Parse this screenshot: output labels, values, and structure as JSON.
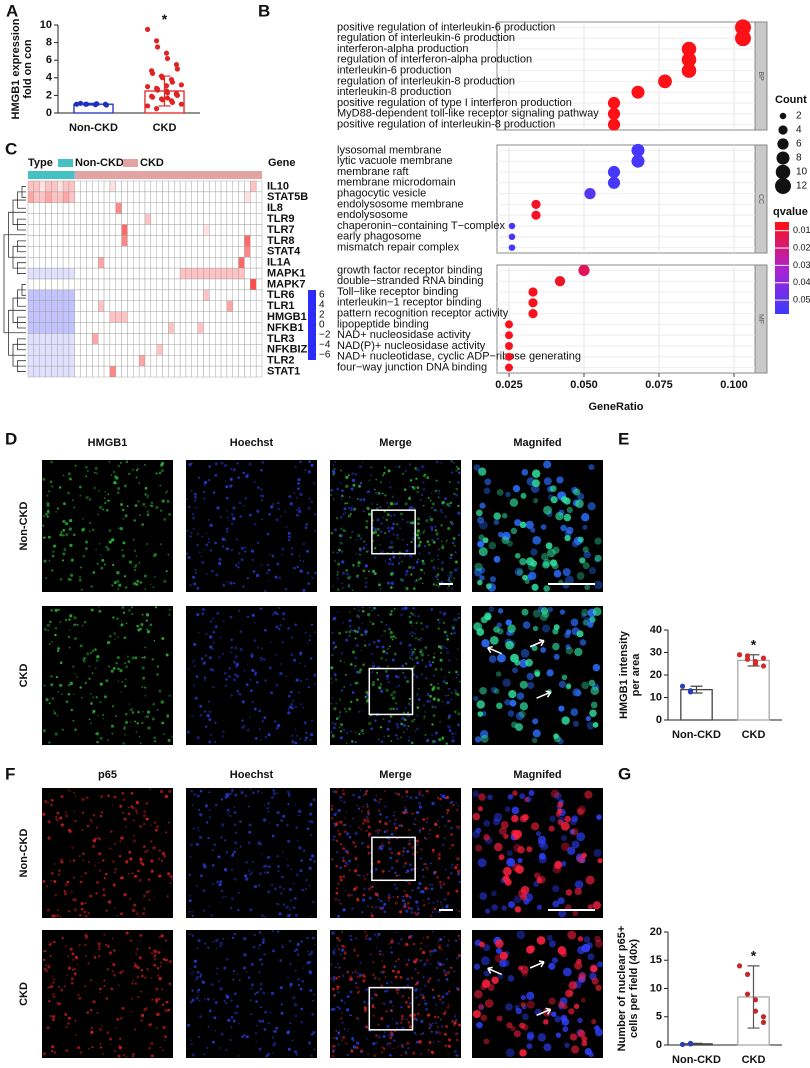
{
  "chart_data": [
    {
      "panel": "A",
      "type": "bar",
      "categories": [
        "Non-CKD",
        "CKD"
      ],
      "y_label": [
        "HMGB1 expression",
        "fold on con"
      ],
      "values": [
        1,
        2.5
      ],
      "errors": [
        0.1,
        1.7
      ],
      "points": [
        [
          1,
          1,
          1,
          0.95,
          1.05,
          1,
          0.9,
          1.1
        ],
        [
          9.5,
          8.2,
          7.5,
          6.8,
          6.2,
          5.5,
          5,
          4.8,
          4.5,
          4.2,
          4,
          3.8,
          3.5,
          3.2,
          3,
          2.8,
          2.6,
          2.5,
          2.3,
          2.2,
          2,
          1.9,
          1.8,
          1.6,
          1.5,
          1.4,
          1.2,
          1,
          0.8,
          0.5,
          2.7,
          3.1,
          1.7,
          2.1
        ]
      ],
      "bar_colors": [
        "#1f2fbf",
        "#e02424"
      ],
      "point_colors": [
        "#1f2fbf",
        "#e02424"
      ],
      "annotations": [
        null,
        "*"
      ],
      "ylim": [
        0,
        10
      ],
      "yticks": [
        0,
        2,
        4,
        6,
        8,
        10
      ]
    },
    {
      "panel": "B",
      "type": "dot",
      "x_label": "GeneRatio",
      "xlim": [
        0.021,
        0.107
      ],
      "xticks": [
        {
          "value": 0.025,
          "label": "0.025"
        },
        {
          "value": 0.05,
          "label": "0.050"
        },
        0.075,
        {
          "value": 0.1,
          "label": "0.100"
        }
      ],
      "facets": [
        {
          "name": "BP",
          "terms": [
            "positive regulation of interleukin-6 production",
            "regulation of interleukin-6 production",
            "interferon-alpha production",
            "regulation of interferon-alpha production",
            "interleukin-6 production",
            "regulation of interleukin-8 production",
            "interleukin-8 production",
            "positive regulation of type I interferon production",
            "MyD88-dependent toll-like receptor signaling pathway",
            "positive regulation of interleukin-8 production"
          ],
          "gene_ratio": [
            0.103,
            0.103,
            0.085,
            0.085,
            0.085,
            0.077,
            0.068,
            0.06,
            0.06,
            0.06
          ],
          "count": [
            12,
            12,
            10,
            10,
            10,
            9,
            8,
            7,
            7,
            7
          ],
          "qvalue": [
            0.006,
            0.006,
            0.006,
            0.006,
            0.006,
            0.006,
            0.006,
            0.006,
            0.006,
            0.006
          ]
        },
        {
          "name": "CC",
          "terms": [
            "lysosomal membrane",
            "lytic vacuole membrane",
            "membrane raft",
            "membrane microdomain",
            "phagocytic vesicle",
            "endolysosome membrane",
            "endolysosome",
            "chaperonin−containing T−complex",
            "early phagosome",
            "mismatch repair complex"
          ],
          "gene_ratio": [
            0.068,
            0.068,
            0.06,
            0.06,
            0.052,
            0.034,
            0.034,
            0.026,
            0.026,
            0.026
          ],
          "count": [
            8,
            8,
            7,
            7,
            6,
            4,
            4,
            2,
            2,
            2
          ],
          "qvalue": [
            0.055,
            0.055,
            0.055,
            0.055,
            0.052,
            0.008,
            0.008,
            0.055,
            0.055,
            0.055
          ]
        },
        {
          "name": "MF",
          "terms": [
            "growth factor receptor binding",
            "double−stranded RNA binding",
            "Toll−like receptor binding",
            "interleukin−1 receptor binding",
            "pattern recognition receptor activity",
            "lipopeptide binding",
            "NAD+ nucleosidase activity",
            "NAD(P)+ nucleosidase activity",
            "NAD+ nucleotidase, cyclic ADP−ribose generating",
            "four−way junction DNA binding"
          ],
          "gene_ratio": [
            0.05,
            0.042,
            0.033,
            0.033,
            0.033,
            0.025,
            0.025,
            0.025,
            0.025,
            0.025
          ],
          "count": [
            6,
            5,
            4,
            4,
            4,
            3,
            3,
            3,
            3,
            3
          ],
          "qvalue": [
            0.015,
            0.008,
            0.007,
            0.007,
            0.007,
            0.007,
            0.007,
            0.007,
            0.007,
            0.007
          ]
        }
      ],
      "size_legend": {
        "title": "Count",
        "values": [
          2,
          4,
          6,
          8,
          10,
          12
        ]
      },
      "color_legend": {
        "title": "qvalue",
        "lim": [
          0.005,
          0.058
        ],
        "ticks": [
          0.01,
          0.02,
          0.03,
          0.04,
          0.05
        ],
        "colors": [
          "#ff1010",
          "#b020d0",
          "#3a3aff"
        ]
      }
    },
    {
      "panel": "C",
      "type": "heatmap",
      "legend_title": "Type",
      "gene_header": "Gene",
      "column_groups": [
        {
          "name": "Non-CKD",
          "color": "#45c1c3",
          "size": 8
        },
        {
          "name": "CKD",
          "color": "#e3a3a3",
          "size": 32
        }
      ],
      "genes": [
        "IL10",
        "STAT5B",
        "IL8",
        "TLR9",
        "TLR7",
        "TLR8",
        "STAT4",
        "IL1A",
        "MAPK1",
        "MAPK7",
        "TLR6",
        "TLR1",
        "HMGB1",
        "NFKB1",
        "TLR3",
        "NFKBIZ",
        "TLR2",
        "STAT1"
      ],
      "values": [
        [
          2,
          2,
          1,
          2,
          2,
          1,
          2,
          2,
          0,
          0,
          0,
          0,
          0,
          0,
          1,
          0,
          0,
          0,
          0,
          0,
          0,
          0,
          0,
          0,
          0,
          0,
          0,
          0,
          0,
          0,
          0,
          0,
          0,
          0,
          0,
          0,
          0,
          0,
          2,
          0
        ],
        [
          3,
          2,
          2,
          3,
          2,
          2,
          3,
          2,
          0,
          0,
          0,
          0,
          0,
          0,
          0,
          0,
          0,
          0,
          0,
          0,
          0,
          0,
          0,
          0,
          0,
          0,
          0,
          0,
          0,
          0,
          0,
          0,
          0,
          0,
          0,
          0,
          0,
          1,
          0,
          0
        ],
        [
          0,
          0,
          0,
          0,
          0,
          0,
          0,
          0,
          0,
          0,
          0,
          0,
          0,
          0,
          0,
          4,
          0,
          0,
          0,
          0,
          0,
          0,
          0,
          0,
          0,
          0,
          0,
          0,
          0,
          0,
          0,
          0,
          0,
          0,
          0,
          0,
          0,
          0,
          0,
          0
        ],
        [
          0,
          0,
          0,
          0,
          0,
          0,
          0,
          0,
          0,
          0,
          0,
          0,
          0,
          0,
          0,
          0,
          0,
          0,
          0,
          0,
          2,
          0,
          0,
          0,
          0,
          0,
          0,
          0,
          0,
          0,
          0,
          0,
          0,
          0,
          0,
          0,
          0,
          0,
          0,
          0
        ],
        [
          0,
          0,
          0,
          0,
          0,
          0,
          0,
          0,
          0,
          0,
          0,
          0,
          0,
          0,
          0,
          0,
          5,
          0,
          0,
          0,
          0,
          0,
          0,
          0,
          0,
          0,
          0,
          0,
          0,
          0,
          1,
          0,
          0,
          0,
          0,
          0,
          0,
          0,
          0,
          0
        ],
        [
          0,
          0,
          0,
          0,
          0,
          0,
          0,
          0,
          0,
          0,
          0,
          0,
          0,
          0,
          0,
          0,
          4,
          0,
          0,
          0,
          0,
          0,
          0,
          0,
          0,
          0,
          0,
          0,
          0,
          0,
          0,
          0,
          0,
          0,
          0,
          0,
          0,
          5,
          0,
          0
        ],
        [
          0,
          0,
          0,
          0,
          0,
          0,
          0,
          0,
          0,
          0,
          0,
          0,
          0,
          0,
          0,
          0,
          0,
          0,
          0,
          0,
          0,
          0,
          0,
          0,
          0,
          0,
          0,
          0,
          0,
          0,
          0,
          0,
          0,
          0,
          0,
          0,
          0,
          4,
          0,
          0
        ],
        [
          0,
          0,
          0,
          0,
          0,
          0,
          0,
          0,
          0,
          0,
          0,
          0,
          3,
          0,
          0,
          0,
          0,
          0,
          0,
          0,
          0,
          0,
          0,
          0,
          0,
          0,
          0,
          0,
          0,
          0,
          0,
          0,
          0,
          0,
          0,
          0,
          5,
          0,
          0,
          0
        ],
        [
          -1,
          -1,
          -1,
          -1,
          -1,
          -1,
          -1,
          -1,
          0,
          0,
          0,
          0,
          0,
          0,
          0,
          0,
          0,
          0,
          0,
          0,
          0,
          0,
          0,
          0,
          0,
          0,
          2,
          2,
          2,
          2,
          2,
          2,
          2,
          2,
          2,
          2,
          2,
          0,
          0,
          0
        ],
        [
          0,
          0,
          0,
          0,
          0,
          0,
          0,
          0,
          0,
          0,
          0,
          0,
          0,
          0,
          0,
          0,
          0,
          0,
          0,
          0,
          0,
          0,
          0,
          0,
          0,
          0,
          0,
          0,
          0,
          0,
          0,
          0,
          0,
          0,
          0,
          0,
          0,
          0,
          6,
          0
        ],
        [
          -2,
          -2,
          -2,
          -2,
          -2,
          -2,
          -2,
          -2,
          0,
          0,
          0,
          0,
          0,
          0,
          0,
          0,
          0,
          0,
          0,
          0,
          0,
          0,
          0,
          0,
          0,
          0,
          0,
          0,
          0,
          0,
          2,
          0,
          0,
          0,
          0,
          0,
          0,
          0,
          0,
          0
        ],
        [
          -2,
          -2,
          -2,
          -2,
          -2,
          -2,
          -2,
          -2,
          0,
          0,
          0,
          0,
          2,
          0,
          0,
          0,
          0,
          0,
          0,
          0,
          0,
          0,
          0,
          0,
          0,
          0,
          0,
          0,
          0,
          0,
          0,
          0,
          0,
          0,
          3,
          0,
          0,
          0,
          0,
          0
        ],
        [
          -2,
          -2,
          -2,
          -2,
          -2,
          -2,
          -2,
          -2,
          0,
          0,
          0,
          0,
          0,
          0,
          2,
          2,
          2,
          0,
          0,
          0,
          0,
          0,
          0,
          0,
          0,
          0,
          0,
          0,
          0,
          0,
          0,
          0,
          0,
          0,
          0,
          0,
          0,
          0,
          0,
          0
        ],
        [
          -2,
          -2,
          -2,
          -2,
          -2,
          -2,
          -2,
          -2,
          0,
          0,
          0,
          0,
          0,
          0,
          0,
          0,
          0,
          0,
          0,
          0,
          0,
          0,
          0,
          0,
          2,
          0,
          0,
          0,
          0,
          2,
          0,
          0,
          0,
          0,
          0,
          0,
          0,
          0,
          0,
          0
        ],
        [
          -1,
          -1,
          -1,
          -1,
          -1,
          -1,
          -1,
          -1,
          0,
          0,
          0,
          3,
          0,
          0,
          0,
          0,
          0,
          0,
          0,
          0,
          0,
          0,
          0,
          0,
          0,
          0,
          0,
          0,
          0,
          0,
          0,
          0,
          0,
          0,
          0,
          0,
          0,
          0,
          0,
          0
        ],
        [
          -1,
          -1,
          -1,
          -1,
          -1,
          -1,
          -1,
          -1,
          0,
          0,
          0,
          0,
          0,
          0,
          0,
          0,
          0,
          0,
          0,
          0,
          0,
          0,
          2,
          0,
          0,
          0,
          0,
          0,
          0,
          0,
          0,
          0,
          0,
          0,
          0,
          0,
          0,
          0,
          0,
          0
        ],
        [
          -1,
          -1,
          -1,
          -1,
          -1,
          -1,
          -1,
          -1,
          0,
          0,
          0,
          0,
          0,
          0,
          0,
          0,
          0,
          0,
          0,
          3,
          0,
          0,
          0,
          0,
          0,
          0,
          0,
          0,
          0,
          0,
          0,
          0,
          0,
          0,
          0,
          0,
          0,
          0,
          0,
          0
        ],
        [
          -1,
          -1,
          -1,
          -1,
          -1,
          -1,
          -1,
          -1,
          0,
          0,
          0,
          0,
          0,
          0,
          4,
          0,
          0,
          0,
          0,
          0,
          0,
          0,
          0,
          0,
          0,
          0,
          0,
          0,
          0,
          0,
          0,
          0,
          0,
          0,
          0,
          0,
          0,
          0,
          0,
          0
        ]
      ],
      "zlim": [
        -7,
        7
      ],
      "colors": [
        "#2c2cff",
        "#ffffff",
        "#ff2c2c"
      ],
      "colorbar_ticks": [
        6,
        4,
        2,
        0,
        {
          "value": -2,
          "label": "−2"
        },
        {
          "value": -4,
          "label": "−4"
        },
        {
          "value": -6,
          "label": "−6"
        }
      ]
    },
    {
      "panel": "E",
      "type": "bar",
      "categories": [
        "Non-CKD",
        "CKD"
      ],
      "y_label": [
        "HMGB1 intensity",
        "per area"
      ],
      "values": [
        13.5,
        26.5
      ],
      "errors": [
        1.5,
        2.5
      ],
      "points": [
        [
          15,
          13,
          12.5
        ],
        [
          29,
          28.5,
          27,
          26,
          25,
          24,
          27.5
        ]
      ],
      "bar_colors": [
        "#444444",
        "#aaaaaa"
      ],
      "point_colors": [
        "#2a3fb0",
        "#d42a2a"
      ],
      "annotations": [
        null,
        "*"
      ],
      "ylim": [
        0,
        40
      ],
      "yticks": [
        0,
        10,
        20,
        30,
        40
      ]
    },
    {
      "panel": "G",
      "type": "bar",
      "categories": [
        "Non-CKD",
        "CKD"
      ],
      "y_label": [
        "Number of nuclear p65+",
        "cells per field (40x)"
      ],
      "values": [
        0.2,
        8.5
      ],
      "errors": [
        0.1,
        5.5
      ],
      "points": [
        [
          0.1,
          0.2,
          0.3
        ],
        [
          14,
          12.5,
          9,
          8,
          6,
          5,
          4
        ]
      ],
      "bar_colors": [
        "#444444",
        "#aaaaaa"
      ],
      "point_colors": [
        "#2a3fb0",
        "#c02a2a"
      ],
      "annotations": [
        null,
        "*"
      ],
      "ylim": [
        0,
        20
      ],
      "yticks": [
        0,
        5,
        10,
        15,
        20
      ]
    }
  ],
  "micrographs": [
    {
      "panel": "D",
      "columns": [
        "HMGB1",
        "Hoechst",
        "Merge",
        "Magnifed"
      ],
      "rows": [
        "Non-CKD",
        "CKD"
      ],
      "column_colors": [
        [
          "#2fbf3a"
        ],
        [
          "#2b3fe0"
        ],
        [
          "#2b3fe0",
          "#2fbf3a"
        ],
        [
          "#2b6fff",
          "#30e0a0"
        ]
      ]
    },
    {
      "panel": "F",
      "columns": [
        "p65",
        "Hoechst",
        "Merge",
        "Magnifed"
      ],
      "rows": [
        "Non-CKD",
        "CKD"
      ],
      "column_colors": [
        [
          "#e02020"
        ],
        [
          "#2b3fe0"
        ],
        [
          "#2b3fe0",
          "#e02020"
        ],
        [
          "#3040ff",
          "#ff2040"
        ]
      ]
    }
  ]
}
